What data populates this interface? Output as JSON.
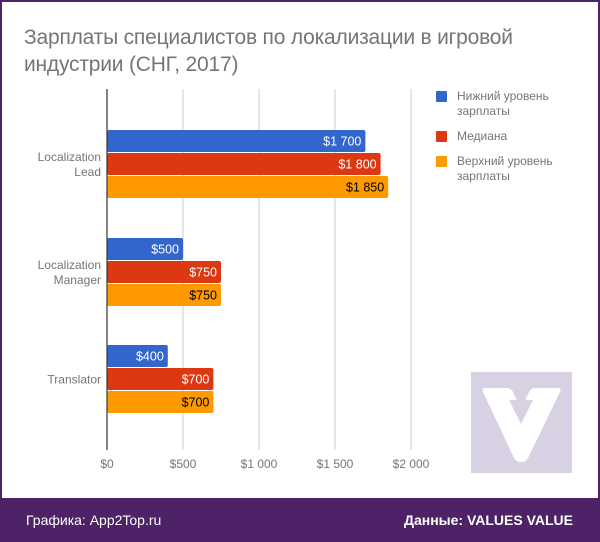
{
  "title": "Зарплаты специалистов по локализации в игровой индустрии (СНГ, 2017)",
  "footer": {
    "left": "Графика: App2Top.ru",
    "right": "Данные: VALUES VALUE"
  },
  "watermark_icon": "v-logo-icon",
  "colors": {
    "frame": "#4d2266",
    "low": "#3366cc",
    "median": "#dc3912",
    "high": "#ff9900",
    "grid": "#cccccc",
    "axis": "#333333",
    "text": "#757575",
    "watermark": "#d8d1e3"
  },
  "chart_data": {
    "type": "bar",
    "orientation": "horizontal",
    "title": "Зарплаты специалистов по локализации в игровой индустрии (СНГ, 2017)",
    "categories": [
      {
        "lines": [
          "Localization",
          "Lead"
        ]
      },
      {
        "lines": [
          "Localization",
          "Manager"
        ]
      },
      {
        "lines": [
          "Translator"
        ]
      }
    ],
    "series": [
      {
        "name_lines": [
          "Нижний уровень",
          "зарплаты"
        ],
        "color": "#3366cc",
        "label_color": "#ffffff",
        "values": [
          1700,
          500,
          400
        ],
        "labels": [
          "$1 700",
          "$500",
          "$400"
        ]
      },
      {
        "name_lines": [
          "Медиана"
        ],
        "color": "#dc3912",
        "label_color": "#ffffff",
        "values": [
          1800,
          750,
          700
        ],
        "labels": [
          "$1 800",
          "$750",
          "$700"
        ]
      },
      {
        "name_lines": [
          "Верхний уровень",
          "зарплаты"
        ],
        "color": "#ff9900",
        "label_color": "#000000",
        "values": [
          1850,
          750,
          700
        ],
        "labels": [
          "$1 850",
          "$750",
          "$700"
        ]
      }
    ],
    "xlim": [
      0,
      2000
    ],
    "xticks": [
      0,
      500,
      1000,
      1500,
      2000
    ],
    "xtick_labels": [
      "$0",
      "$500",
      "$1 000",
      "$1 500",
      "$2 000"
    ],
    "xlabel": "",
    "ylabel": "",
    "grid": true,
    "legend": "right"
  }
}
